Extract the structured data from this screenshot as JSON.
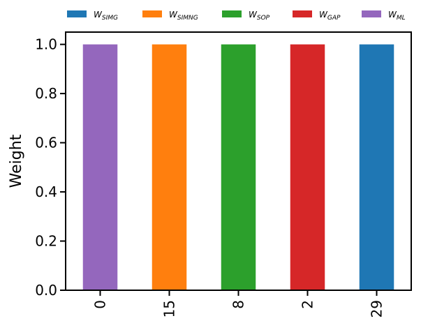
{
  "chart_data": {
    "type": "bar",
    "stacked": true,
    "categories": [
      "0",
      "15",
      "8",
      "2",
      "29"
    ],
    "ylabel": "Weight",
    "xlabel": "",
    "ylim": [
      0,
      1.05
    ],
    "yticks": [
      "0.0",
      "0.2",
      "0.4",
      "0.6",
      "0.8",
      "1.0"
    ],
    "legend_placement": "top",
    "series": [
      {
        "name": "W",
        "subscript": "SIMG",
        "color": "#1f77b4",
        "values": [
          0,
          0,
          0,
          0,
          1.0
        ]
      },
      {
        "name": "W",
        "subscript": "SIMNG",
        "color": "#ff7f0e",
        "values": [
          0,
          1.0,
          0,
          0,
          0
        ]
      },
      {
        "name": "W",
        "subscript": "SOP",
        "color": "#2ca02c",
        "values": [
          0,
          0,
          1.0,
          0,
          0
        ]
      },
      {
        "name": "W",
        "subscript": "GAP",
        "color": "#d62728",
        "values": [
          0,
          0,
          0,
          1.0,
          0
        ]
      },
      {
        "name": "W",
        "subscript": "ML",
        "color": "#9467bd",
        "values": [
          1.0,
          0,
          0,
          0,
          0
        ]
      }
    ]
  }
}
